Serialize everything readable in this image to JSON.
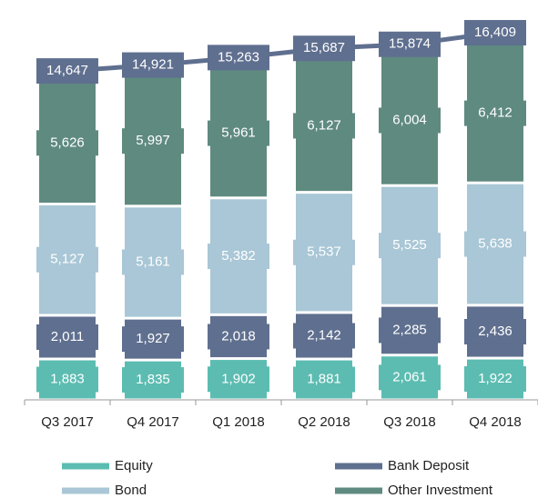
{
  "chart_data": {
    "type": "stacked-bar",
    "categories": [
      "Q3 2017",
      "Q4 2017",
      "Q1 2018",
      "Q2 2018",
      "Q3 2018",
      "Q4 2018"
    ],
    "series": [
      {
        "name": "Equity",
        "color": "#5cbcb1",
        "values": [
          1883,
          1835,
          1902,
          1881,
          2061,
          1922
        ],
        "value_labels": [
          "1,883",
          "1,835",
          "1,902",
          "1,881",
          "2,061",
          "1,922"
        ]
      },
      {
        "name": "Bank Deposit",
        "color": "#5f6f8f",
        "values": [
          2011,
          1927,
          2018,
          2142,
          2285,
          2436
        ],
        "value_labels": [
          "2,011",
          "1,927",
          "2,018",
          "2,142",
          "2,285",
          "2,436"
        ]
      },
      {
        "name": "Bond",
        "color": "#a9c7d6",
        "values": [
          5127,
          5161,
          5382,
          5537,
          5525,
          5638
        ],
        "value_labels": [
          "5,127",
          "5,161",
          "5,382",
          "5,537",
          "5,525",
          "5,638"
        ]
      },
      {
        "name": "Other Investment",
        "color": "#5f8a80",
        "values": [
          5626,
          5997,
          5961,
          6127,
          6004,
          6412
        ],
        "value_labels": [
          "5,626",
          "5,997",
          "5,961",
          "6,127",
          "6,004",
          "6,412"
        ]
      }
    ],
    "totals": {
      "color": "#5f6f8f",
      "values": [
        14647,
        14921,
        15263,
        15687,
        15874,
        16409
      ],
      "value_labels": [
        "14,647",
        "14,921",
        "15,263",
        "15,687",
        "15,874",
        "16,409"
      ]
    }
  }
}
